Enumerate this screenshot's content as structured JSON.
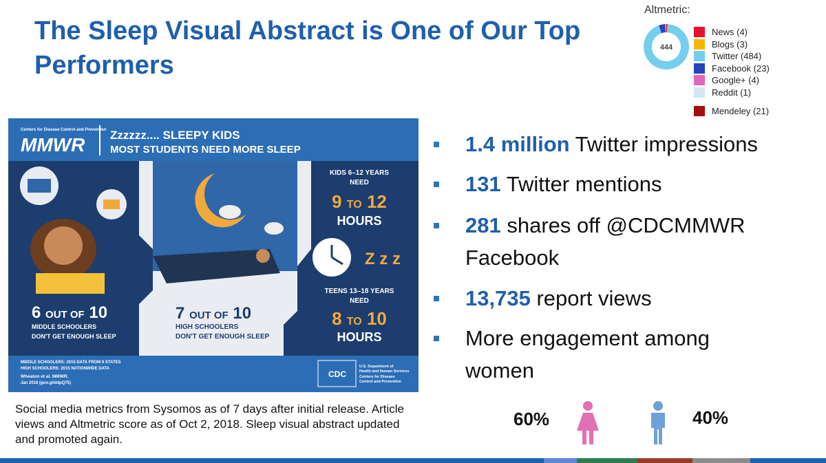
{
  "header": {
    "title": "The Sleep Visual Abstract is One of Our Top Performers"
  },
  "altmetric": {
    "label": "Altmetric:",
    "score": 444,
    "sources": [
      {
        "label": "News (4)",
        "value": 4,
        "color": "#e8112d"
      },
      {
        "label": "Blogs (3)",
        "value": 3,
        "color": "#f5b800"
      },
      {
        "label": "Twitter (484)",
        "value": 484,
        "color": "#74cfed"
      },
      {
        "label": "Facebook (23)",
        "value": 23,
        "color": "#2445bd"
      },
      {
        "label": "Google+ (4)",
        "value": 4,
        "color": "#e065bb"
      },
      {
        "label": "Reddit (1)",
        "value": 1,
        "color": "#d5e6f3"
      }
    ],
    "mendeley": {
      "label": "Mendeley (21)",
      "color": "#a60f0f"
    }
  },
  "infographic": {
    "agency": "Centers for Disease Control and Prevention",
    "logo": "MMWR",
    "headline": "Zzzzzz.... SLEEPY KIDS",
    "subhead": "MOST STUDENTS NEED MORE SLEEP",
    "kids": {
      "group": "KIDS 6–12 YEARS",
      "need": "NEED",
      "range": [
        "9",
        "TO",
        "12"
      ],
      "unit": "HOURS"
    },
    "snore": "Z z z",
    "teens": {
      "group": "TEENS 13–18 YEARS",
      "need": "NEED",
      "range": [
        "8",
        "TO",
        "10"
      ],
      "unit": "HOURS"
    },
    "middle": {
      "stat": [
        "6",
        "OUT OF",
        "10"
      ],
      "lines": [
        "MIDDLE SCHOOLERS",
        "DON'T GET ENOUGH SLEEP"
      ]
    },
    "high": {
      "stat": [
        "7",
        "OUT OF",
        "10"
      ],
      "lines": [
        "HIGH SCHOOLERS",
        "DON'T GET ENOUGH SLEEP"
      ]
    },
    "sources": [
      "MIDDLE SCHOOLERS: 2015 DATA FROM 9 STATES",
      "HIGH SCHOOLERS: 2015 NATIONWIDE DATA"
    ],
    "citation": [
      "Wheaton et al. MMWR.",
      "Jan 2018 (goo.gl/ddpQ75)"
    ],
    "cdc": "CDC",
    "hhs": [
      "U.S. Department of",
      "Health and Human Services",
      "Centers for Disease",
      "Control and Prevention"
    ]
  },
  "bullets": [
    {
      "highlight": "1.4 million",
      "text": "Twitter impressions"
    },
    {
      "highlight": "131",
      "text": "Twitter mentions"
    },
    {
      "highlight": "281",
      "text": "shares off @CDCMMWR Facebook"
    },
    {
      "highlight": "13,735",
      "text": "report views"
    },
    {
      "text": "More engagement among women"
    }
  ],
  "footnote": "Social media metrics from Sysomos as of 7 days after initial release. Article views and Altmetric score as of Oct 2, 2018. Sleep visual abstract updated and promoted again.",
  "gender": {
    "women": "60%",
    "men": "40%"
  }
}
